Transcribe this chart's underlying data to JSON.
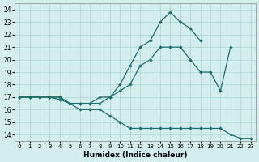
{
  "xlabel": "Humidex (Indice chaleur)",
  "bg_color": "#d4eeee",
  "grid_color": "#aad4d4",
  "line_color": "#1a6e6e",
  "xlim": [
    -0.5,
    23.5
  ],
  "ylim": [
    13.5,
    24.5
  ],
  "yticks": [
    14,
    15,
    16,
    17,
    18,
    19,
    20,
    21,
    22,
    23,
    24
  ],
  "xticks": [
    0,
    1,
    2,
    3,
    4,
    5,
    6,
    7,
    8,
    9,
    10,
    11,
    12,
    13,
    14,
    15,
    16,
    17,
    18,
    19,
    20,
    21,
    22,
    23
  ],
  "line1_x": [
    0,
    1,
    2,
    3,
    4,
    5,
    6,
    7,
    8,
    9,
    10,
    11,
    12,
    13,
    14,
    15,
    16,
    17,
    18,
    19,
    20,
    21
  ],
  "line1_y": [
    17,
    17,
    17,
    17,
    17,
    16.5,
    16.5,
    16.5,
    17,
    17,
    17.5,
    18,
    19.5,
    20,
    21,
    21,
    21,
    20,
    19,
    19,
    17.5,
    21
  ],
  "line2_x": [
    0,
    1,
    2,
    3,
    4,
    5,
    6,
    7,
    8,
    9,
    10,
    11,
    12,
    13,
    14,
    15,
    16,
    17,
    18
  ],
  "line2_y": [
    17,
    17,
    17,
    17,
    16.8,
    16.5,
    16.5,
    16.5,
    16.5,
    17,
    18,
    19.5,
    21,
    21.5,
    23,
    23.8,
    23,
    22.5,
    21.5
  ],
  "line3_x": [
    0,
    1,
    2,
    3,
    4,
    5,
    6,
    7,
    8,
    9,
    10,
    11,
    12,
    13,
    14,
    15,
    16,
    17,
    18,
    19,
    20,
    21,
    22,
    23
  ],
  "line3_y": [
    17,
    17,
    17,
    17,
    17,
    16.5,
    16,
    16,
    16,
    15.5,
    15,
    14.5,
    14.5,
    14.5,
    14.5,
    14.5,
    14.5,
    14.5,
    14.5,
    14.5,
    14.5,
    14,
    13.7,
    13.7
  ]
}
